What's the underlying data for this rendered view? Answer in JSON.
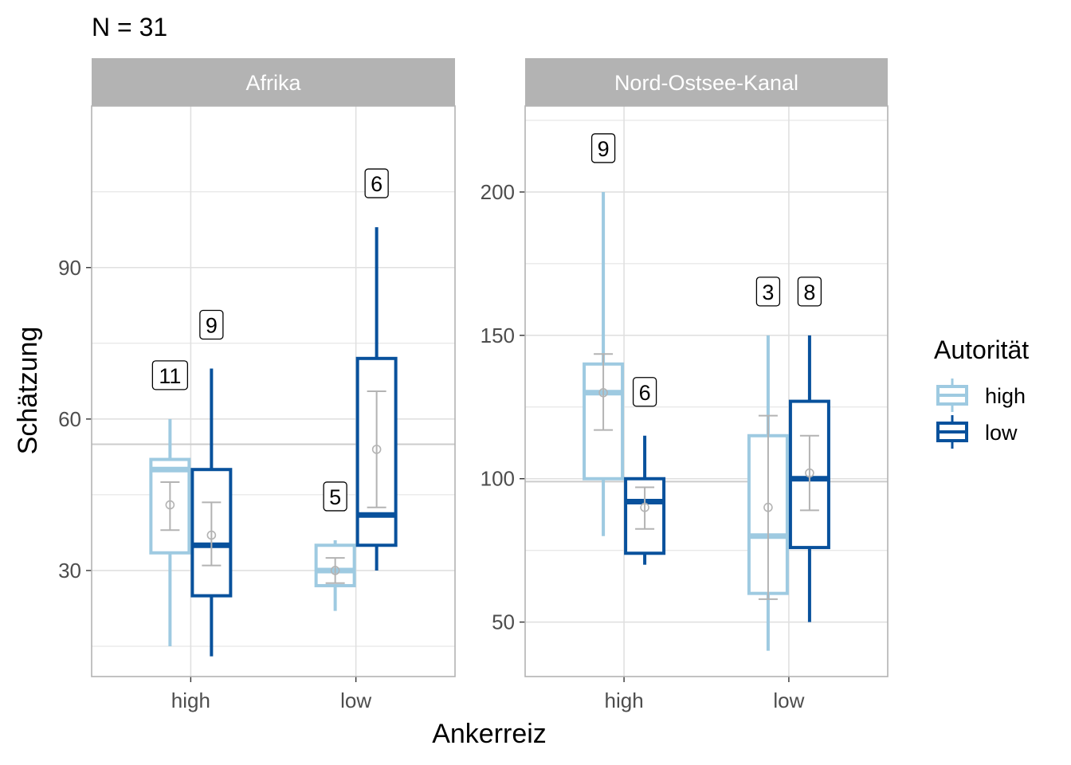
{
  "title": "N = 31",
  "xlabel": "Ankerreiz",
  "ylabel": "Schätzung",
  "legend": {
    "title": "Autorität",
    "position": "right",
    "items": [
      {
        "label": "high",
        "color": "#9ecae1"
      },
      {
        "label": "low",
        "color": "#08519c"
      }
    ]
  },
  "colors": {
    "strip_bg": "#b3b3b3",
    "strip_text": "#ffffff",
    "grid": "#e0e0e0",
    "panel_border": "#b3b3b3",
    "reference_line": "#cccccc",
    "mean_marker": "#b3b3b3"
  },
  "chart_data": [
    {
      "type": "box",
      "facet": "Afrika",
      "categories": [
        "high",
        "low"
      ],
      "yticks": [
        30,
        60,
        90
      ],
      "ylim": [
        9,
        122
      ],
      "grid": true,
      "reference_line": 55,
      "series": [
        {
          "name": "high",
          "boxes": [
            {
              "category": "high",
              "min": 15,
              "q1": 33.5,
              "median": 50,
              "q3": 52,
              "max": 60,
              "mean": 43,
              "ci": [
                38,
                47.5
              ],
              "n": 11
            },
            {
              "category": "low",
              "min": 22,
              "q1": 27,
              "median": 30,
              "q3": 35,
              "max": 36,
              "mean": 30,
              "ci": [
                27.5,
                32.5
              ],
              "n": 5
            }
          ]
        },
        {
          "name": "low",
          "boxes": [
            {
              "category": "high",
              "min": 13,
              "q1": 25,
              "median": 35,
              "q3": 50,
              "max": 70,
              "mean": 37,
              "ci": [
                31,
                43.5
              ],
              "n": 9
            },
            {
              "category": "low",
              "min": 30,
              "q1": 35,
              "median": 41,
              "q3": 72,
              "max": 98,
              "mean": 54,
              "ci": [
                42.5,
                65.5
              ],
              "n": 6
            }
          ]
        }
      ]
    },
    {
      "type": "box",
      "facet": "Nord-Ostsee-Kanal",
      "categories": [
        "high",
        "low"
      ],
      "yticks": [
        50,
        100,
        150,
        200
      ],
      "ylim": [
        31,
        230
      ],
      "grid": true,
      "reference_line": 99,
      "series": [
        {
          "name": "high",
          "boxes": [
            {
              "category": "high",
              "min": 80,
              "q1": 100,
              "median": 130,
              "q3": 140,
              "max": 200,
              "mean": 130,
              "ci": [
                117,
                143.5
              ],
              "n": 9
            },
            {
              "category": "low",
              "min": 40,
              "q1": 60,
              "median": 80,
              "q3": 115,
              "max": 150,
              "mean": 90,
              "ci": [
                58,
                122
              ],
              "n": 3
            }
          ]
        },
        {
          "name": "low",
          "boxes": [
            {
              "category": "high",
              "min": 70,
              "q1": 74,
              "median": 92,
              "q3": 100,
              "max": 115,
              "mean": 90,
              "ci": [
                82.5,
                97
              ],
              "n": 6
            },
            {
              "category": "low",
              "min": 50,
              "q1": 76,
              "median": 100,
              "q3": 127,
              "max": 150,
              "mean": 102,
              "ci": [
                89,
                115
              ],
              "n": 8
            }
          ]
        }
      ]
    }
  ]
}
